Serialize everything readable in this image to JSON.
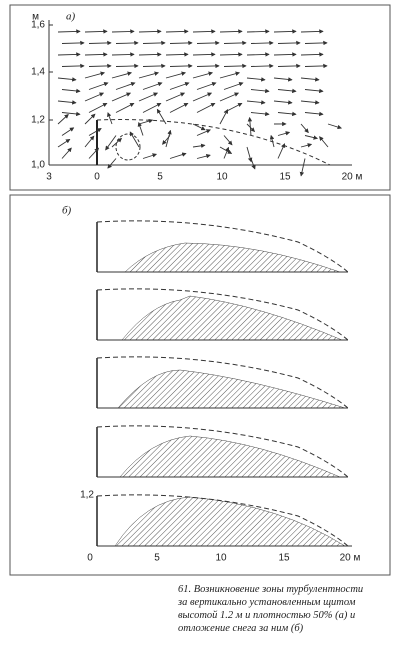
{
  "panel_a": {
    "label": "а)",
    "y_unit": "м",
    "y_ticks": [
      "1,6",
      "1,4",
      "1,2",
      "1,0"
    ],
    "x_ticks": [
      "3",
      "0",
      "5",
      "10",
      "15",
      "20 м"
    ]
  },
  "panel_b": {
    "label": "б)",
    "y_tick": "1,2",
    "x_ticks": [
      "0",
      "5",
      "10",
      "15",
      "20 м"
    ]
  },
  "caption": [
    "61. Возникновение зоны турбулентности",
    "за вертикально установленным щитом",
    "высотой 1.2 м и плотностью 50% (а) и",
    "отложение снега за ним (б)"
  ]
}
